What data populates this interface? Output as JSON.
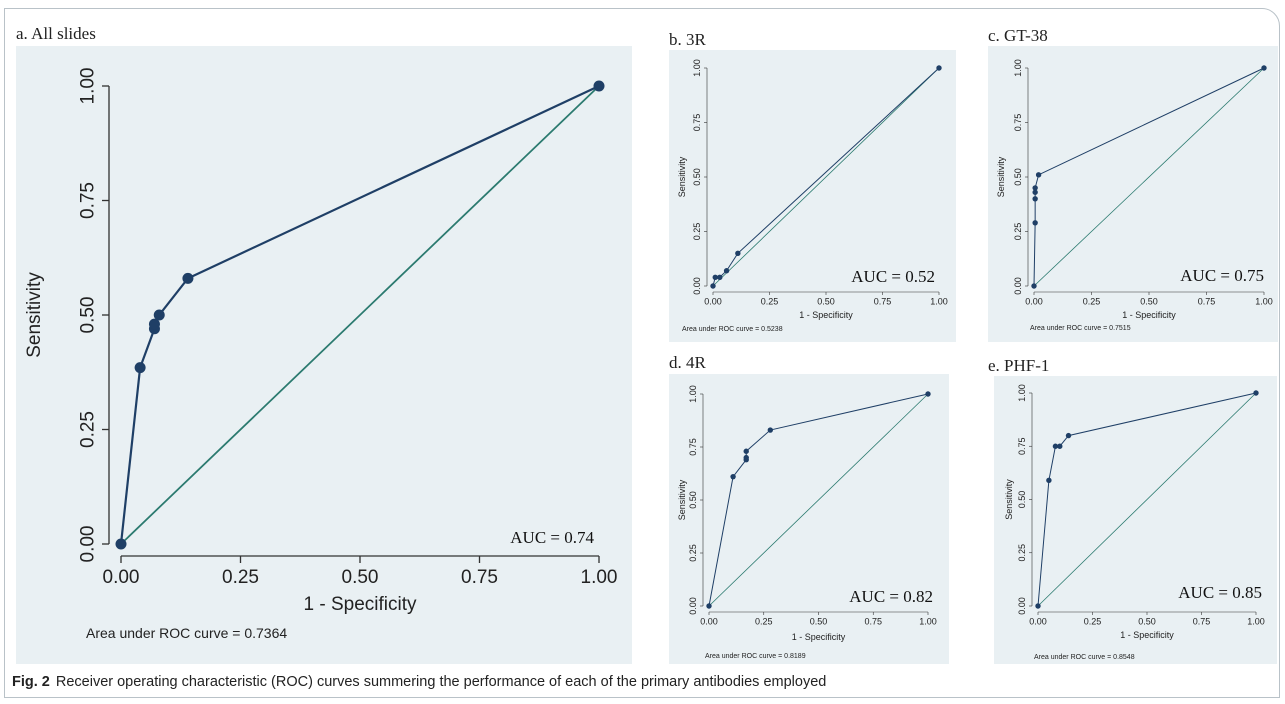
{
  "figure_label": "Fig. 2",
  "caption": "Receiver operating characteristic (ROC) curves summering the performance of each of the primary antibodies employed",
  "colors": {
    "curve": "#1f3f66",
    "diagonal": "#2b7a6f",
    "panel_bg": "#e9f0f3"
  },
  "chart_data": [
    {
      "id": "a",
      "type": "line",
      "title": "a. All slides",
      "xlabel": "1 - Specificity",
      "ylabel": "Sensitivity",
      "xlim": [
        0,
        1
      ],
      "ylim": [
        0,
        1
      ],
      "ticks": [
        "0.00",
        "0.25",
        "0.50",
        "0.75",
        "1.00"
      ],
      "auc_label": "AUC = 0.74",
      "area_note": "Area under ROC curve = 0.7364",
      "series": [
        {
          "x": [
            0,
            0.04,
            0.07,
            0.07,
            0.08,
            0.14,
            1
          ],
          "y": [
            0,
            0.385,
            0.47,
            0.48,
            0.5,
            0.58,
            1
          ]
        }
      ]
    },
    {
      "id": "b",
      "type": "line",
      "title": "b. 3R",
      "xlabel": "1 - Specificity",
      "ylabel": "Sensitivity",
      "xlim": [
        0,
        1
      ],
      "ylim": [
        0,
        1
      ],
      "ticks": [
        "0.00",
        "0.25",
        "0.50",
        "0.75",
        "1.00"
      ],
      "auc_label": "AUC = 0.52",
      "area_note": "Area under ROC curve = 0.5238",
      "series": [
        {
          "x": [
            0,
            0.01,
            0.03,
            0.06,
            0.11,
            1
          ],
          "y": [
            0,
            0.04,
            0.04,
            0.07,
            0.15,
            1
          ]
        }
      ]
    },
    {
      "id": "c",
      "type": "line",
      "title": "c. GT-38",
      "xlabel": "1 - Specificity",
      "ylabel": "Sensitivity",
      "xlim": [
        0,
        1
      ],
      "ylim": [
        0,
        1
      ],
      "ticks": [
        "0.00",
        "0.25",
        "0.50",
        "0.75",
        "1.00"
      ],
      "auc_label": "AUC = 0.75",
      "area_note": "Area under ROC curve = 0.7515",
      "series": [
        {
          "x": [
            0,
            0.005,
            0.005,
            0.005,
            0.005,
            0.02,
            1
          ],
          "y": [
            0,
            0.29,
            0.4,
            0.43,
            0.45,
            0.51,
            1
          ]
        }
      ]
    },
    {
      "id": "d",
      "type": "line",
      "title": "d. 4R",
      "xlabel": "1 - Specificity",
      "ylabel": "Sensitivity",
      "xlim": [
        0,
        1
      ],
      "ylim": [
        0,
        1
      ],
      "ticks": [
        "0.00",
        "0.25",
        "0.50",
        "0.75",
        "1.00"
      ],
      "auc_label": "AUC = 0.82",
      "area_note": "Area under ROC curve = 0.8189",
      "series": [
        {
          "x": [
            0,
            0.11,
            0.17,
            0.17,
            0.17,
            0.28,
            1
          ],
          "y": [
            0,
            0.61,
            0.69,
            0.7,
            0.73,
            0.83,
            1
          ]
        }
      ]
    },
    {
      "id": "e",
      "type": "line",
      "title": "e. PHF-1",
      "xlabel": "1 - Specificity",
      "ylabel": "Sensitivity",
      "xlim": [
        0,
        1
      ],
      "ylim": [
        0,
        1
      ],
      "ticks": [
        "0.00",
        "0.25",
        "0.50",
        "0.75",
        "1.00"
      ],
      "auc_label": "AUC = 0.85",
      "area_note": "Area under ROC curve = 0.8548",
      "series": [
        {
          "x": [
            0,
            0.05,
            0.08,
            0.1,
            0.14,
            1
          ],
          "y": [
            0,
            0.59,
            0.75,
            0.75,
            0.8,
            1
          ]
        }
      ]
    }
  ]
}
